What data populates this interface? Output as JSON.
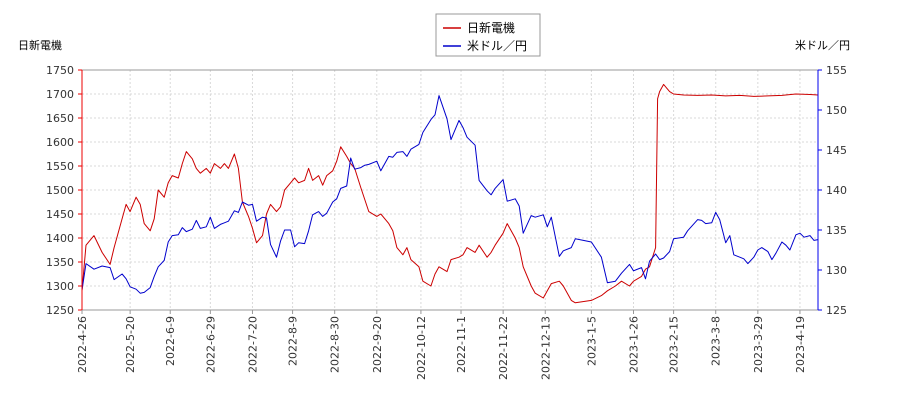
{
  "chart_data": {
    "type": "line",
    "left_axis_label": "日新電機",
    "right_axis_label": "米ドル／円",
    "x_tick_labels": [
      "2022-4-26",
      "2022-5-20",
      "2022-6-9",
      "2022-6-29",
      "2022-7-20",
      "2022-8-9",
      "2022-8-30",
      "2022-9-20",
      "2022-10-12",
      "2022-11-1",
      "2022-11-22",
      "2022-12-13",
      "2023-1-5",
      "2023-1-26",
      "2023-2-15",
      "2023-3-8",
      "2023-3-29",
      "2023-4-19"
    ],
    "x_range": [
      "2022-04-26",
      "2023-04-28"
    ],
    "y_left": {
      "min": 1250,
      "max": 1750,
      "ticks": [
        1250,
        1300,
        1350,
        1400,
        1450,
        1500,
        1550,
        1600,
        1650,
        1700,
        1750
      ]
    },
    "y_right": {
      "min": 125,
      "max": 155,
      "ticks": [
        125,
        130,
        135,
        140,
        145,
        150,
        155
      ]
    },
    "grid": true,
    "legend": {
      "position": "top-center"
    },
    "series": [
      {
        "name": "日新電機",
        "axis": "left",
        "color": "#cc0000",
        "points": [
          [
            "2022-04-26",
            1290
          ],
          [
            "2022-04-28",
            1385
          ],
          [
            "2022-05-02",
            1405
          ],
          [
            "2022-05-06",
            1370
          ],
          [
            "2022-05-10",
            1345
          ],
          [
            "2022-05-12",
            1380
          ],
          [
            "2022-05-16",
            1440
          ],
          [
            "2022-05-18",
            1470
          ],
          [
            "2022-05-20",
            1455
          ],
          [
            "2022-05-23",
            1485
          ],
          [
            "2022-05-25",
            1470
          ],
          [
            "2022-05-27",
            1430
          ],
          [
            "2022-05-30",
            1415
          ],
          [
            "2022-06-01",
            1440
          ],
          [
            "2022-06-03",
            1500
          ],
          [
            "2022-06-06",
            1485
          ],
          [
            "2022-06-08",
            1515
          ],
          [
            "2022-06-10",
            1530
          ],
          [
            "2022-06-13",
            1525
          ],
          [
            "2022-06-15",
            1555
          ],
          [
            "2022-06-17",
            1580
          ],
          [
            "2022-06-20",
            1565
          ],
          [
            "2022-06-22",
            1545
          ],
          [
            "2022-06-24",
            1535
          ],
          [
            "2022-06-27",
            1545
          ],
          [
            "2022-06-29",
            1535
          ],
          [
            "2022-07-01",
            1555
          ],
          [
            "2022-07-04",
            1545
          ],
          [
            "2022-07-06",
            1555
          ],
          [
            "2022-07-08",
            1545
          ],
          [
            "2022-07-11",
            1575
          ],
          [
            "2022-07-13",
            1545
          ],
          [
            "2022-07-15",
            1475
          ],
          [
            "2022-07-18",
            1445
          ],
          [
            "2022-07-20",
            1420
          ],
          [
            "2022-07-22",
            1390
          ],
          [
            "2022-07-25",
            1405
          ],
          [
            "2022-07-27",
            1450
          ],
          [
            "2022-07-29",
            1470
          ],
          [
            "2022-08-01",
            1455
          ],
          [
            "2022-08-03",
            1465
          ],
          [
            "2022-08-05",
            1500
          ],
          [
            "2022-08-08",
            1515
          ],
          [
            "2022-08-10",
            1525
          ],
          [
            "2022-08-12",
            1515
          ],
          [
            "2022-08-15",
            1520
          ],
          [
            "2022-08-17",
            1545
          ],
          [
            "2022-08-19",
            1520
          ],
          [
            "2022-08-22",
            1530
          ],
          [
            "2022-08-24",
            1510
          ],
          [
            "2022-08-26",
            1530
          ],
          [
            "2022-08-29",
            1540
          ],
          [
            "2022-08-31",
            1560
          ],
          [
            "2022-09-02",
            1590
          ],
          [
            "2022-09-05",
            1570
          ],
          [
            "2022-09-07",
            1555
          ],
          [
            "2022-09-09",
            1545
          ],
          [
            "2022-09-12",
            1505
          ],
          [
            "2022-09-14",
            1480
          ],
          [
            "2022-09-16",
            1455
          ],
          [
            "2022-09-20",
            1445
          ],
          [
            "2022-09-22",
            1450
          ],
          [
            "2022-09-26",
            1430
          ],
          [
            "2022-09-28",
            1415
          ],
          [
            "2022-09-30",
            1380
          ],
          [
            "2022-10-03",
            1365
          ],
          [
            "2022-10-05",
            1380
          ],
          [
            "2022-10-07",
            1355
          ],
          [
            "2022-10-11",
            1340
          ],
          [
            "2022-10-13",
            1310
          ],
          [
            "2022-10-17",
            1300
          ],
          [
            "2022-10-19",
            1325
          ],
          [
            "2022-10-21",
            1340
          ],
          [
            "2022-10-25",
            1330
          ],
          [
            "2022-10-27",
            1355
          ],
          [
            "2022-10-31",
            1360
          ],
          [
            "2022-11-02",
            1365
          ],
          [
            "2022-11-04",
            1380
          ],
          [
            "2022-11-08",
            1370
          ],
          [
            "2022-11-10",
            1385
          ],
          [
            "2022-11-14",
            1360
          ],
          [
            "2022-11-16",
            1370
          ],
          [
            "2022-11-18",
            1385
          ],
          [
            "2022-11-22",
            1410
          ],
          [
            "2022-11-24",
            1430
          ],
          [
            "2022-11-28",
            1400
          ],
          [
            "2022-11-30",
            1380
          ],
          [
            "2022-12-02",
            1340
          ],
          [
            "2022-12-06",
            1300
          ],
          [
            "2022-12-08",
            1285
          ],
          [
            "2022-12-12",
            1275
          ],
          [
            "2022-12-14",
            1290
          ],
          [
            "2022-12-16",
            1305
          ],
          [
            "2022-12-20",
            1310
          ],
          [
            "2022-12-22",
            1300
          ],
          [
            "2022-12-26",
            1270
          ],
          [
            "2022-12-28",
            1265
          ],
          [
            "2023-01-05",
            1270
          ],
          [
            "2023-01-10",
            1280
          ],
          [
            "2023-01-13",
            1290
          ],
          [
            "2023-01-17",
            1300
          ],
          [
            "2023-01-20",
            1310
          ],
          [
            "2023-01-24",
            1300
          ],
          [
            "2023-01-26",
            1310
          ],
          [
            "2023-01-30",
            1320
          ],
          [
            "2023-02-01",
            1335
          ],
          [
            "2023-02-03",
            1340
          ],
          [
            "2023-02-06",
            1380
          ],
          [
            "2023-02-07",
            1690
          ],
          [
            "2023-02-08",
            1705
          ],
          [
            "2023-02-10",
            1720
          ],
          [
            "2023-02-13",
            1705
          ],
          [
            "2023-02-15",
            1700
          ],
          [
            "2023-02-20",
            1698
          ],
          [
            "2023-02-27",
            1697
          ],
          [
            "2023-03-06",
            1698
          ],
          [
            "2023-03-13",
            1696
          ],
          [
            "2023-03-20",
            1697
          ],
          [
            "2023-03-27",
            1695
          ],
          [
            "2023-04-03",
            1696
          ],
          [
            "2023-04-10",
            1697
          ],
          [
            "2023-04-17",
            1700
          ],
          [
            "2023-04-24",
            1699
          ],
          [
            "2023-04-28",
            1698
          ]
        ]
      },
      {
        "name": "米ドル／円",
        "axis": "right",
        "color": "#0000cc",
        "points": [
          [
            "2022-04-26",
            127.5
          ],
          [
            "2022-04-28",
            130.8
          ],
          [
            "2022-05-02",
            130.1
          ],
          [
            "2022-05-06",
            130.5
          ],
          [
            "2022-05-10",
            130.3
          ],
          [
            "2022-05-12",
            128.8
          ],
          [
            "2022-05-16",
            129.5
          ],
          [
            "2022-05-18",
            128.9
          ],
          [
            "2022-05-20",
            127.9
          ],
          [
            "2022-05-23",
            127.6
          ],
          [
            "2022-05-25",
            127.1
          ],
          [
            "2022-05-27",
            127.2
          ],
          [
            "2022-05-30",
            127.8
          ],
          [
            "2022-06-01",
            129.2
          ],
          [
            "2022-06-03",
            130.4
          ],
          [
            "2022-06-06",
            131.2
          ],
          [
            "2022-06-08",
            133.5
          ],
          [
            "2022-06-10",
            134.3
          ],
          [
            "2022-06-13",
            134.4
          ],
          [
            "2022-06-15",
            135.3
          ],
          [
            "2022-06-17",
            134.8
          ],
          [
            "2022-06-20",
            135.1
          ],
          [
            "2022-06-22",
            136.2
          ],
          [
            "2022-06-24",
            135.2
          ],
          [
            "2022-06-27",
            135.4
          ],
          [
            "2022-06-29",
            136.6
          ],
          [
            "2022-07-01",
            135.2
          ],
          [
            "2022-07-04",
            135.7
          ],
          [
            "2022-07-06",
            135.9
          ],
          [
            "2022-07-08",
            136.1
          ],
          [
            "2022-07-11",
            137.4
          ],
          [
            "2022-07-13",
            137.2
          ],
          [
            "2022-07-15",
            138.5
          ],
          [
            "2022-07-18",
            138.1
          ],
          [
            "2022-07-20",
            138.2
          ],
          [
            "2022-07-22",
            136.1
          ],
          [
            "2022-07-25",
            136.6
          ],
          [
            "2022-07-27",
            136.5
          ],
          [
            "2022-07-29",
            133.2
          ],
          [
            "2022-08-01",
            131.6
          ],
          [
            "2022-08-03",
            133.6
          ],
          [
            "2022-08-05",
            135.0
          ],
          [
            "2022-08-08",
            135.0
          ],
          [
            "2022-08-10",
            132.9
          ],
          [
            "2022-08-12",
            133.4
          ],
          [
            "2022-08-15",
            133.3
          ],
          [
            "2022-08-17",
            134.9
          ],
          [
            "2022-08-19",
            136.9
          ],
          [
            "2022-08-22",
            137.3
          ],
          [
            "2022-08-24",
            136.7
          ],
          [
            "2022-08-26",
            137.1
          ],
          [
            "2022-08-29",
            138.5
          ],
          [
            "2022-08-31",
            138.9
          ],
          [
            "2022-09-02",
            140.2
          ],
          [
            "2022-09-05",
            140.5
          ],
          [
            "2022-09-07",
            144.0
          ],
          [
            "2022-09-09",
            142.6
          ],
          [
            "2022-09-12",
            142.8
          ],
          [
            "2022-09-14",
            143.1
          ],
          [
            "2022-09-16",
            143.2
          ],
          [
            "2022-09-20",
            143.6
          ],
          [
            "2022-09-22",
            142.4
          ],
          [
            "2022-09-26",
            144.2
          ],
          [
            "2022-09-28",
            144.1
          ],
          [
            "2022-09-30",
            144.7
          ],
          [
            "2022-10-03",
            144.8
          ],
          [
            "2022-10-05",
            144.2
          ],
          [
            "2022-10-07",
            145.1
          ],
          [
            "2022-10-11",
            145.7
          ],
          [
            "2022-10-13",
            147.2
          ],
          [
            "2022-10-17",
            148.8
          ],
          [
            "2022-10-19",
            149.4
          ],
          [
            "2022-10-21",
            151.8
          ],
          [
            "2022-10-25",
            148.9
          ],
          [
            "2022-10-27",
            146.3
          ],
          [
            "2022-10-31",
            148.7
          ],
          [
            "2022-11-02",
            147.8
          ],
          [
            "2022-11-04",
            146.6
          ],
          [
            "2022-11-08",
            145.6
          ],
          [
            "2022-11-10",
            141.2
          ],
          [
            "2022-11-14",
            139.9
          ],
          [
            "2022-11-16",
            139.4
          ],
          [
            "2022-11-18",
            140.2
          ],
          [
            "2022-11-22",
            141.3
          ],
          [
            "2022-11-24",
            138.6
          ],
          [
            "2022-11-28",
            138.9
          ],
          [
            "2022-11-30",
            138.0
          ],
          [
            "2022-12-02",
            134.6
          ],
          [
            "2022-12-06",
            136.8
          ],
          [
            "2022-12-08",
            136.6
          ],
          [
            "2022-12-12",
            136.9
          ],
          [
            "2022-12-14",
            135.4
          ],
          [
            "2022-12-16",
            136.6
          ],
          [
            "2022-12-20",
            131.7
          ],
          [
            "2022-12-22",
            132.4
          ],
          [
            "2022-12-26",
            132.8
          ],
          [
            "2022-12-28",
            133.9
          ],
          [
            "2023-01-05",
            133.5
          ],
          [
            "2023-01-10",
            131.6
          ],
          [
            "2023-01-13",
            128.4
          ],
          [
            "2023-01-17",
            128.6
          ],
          [
            "2023-01-20",
            129.6
          ],
          [
            "2023-01-24",
            130.7
          ],
          [
            "2023-01-26",
            129.9
          ],
          [
            "2023-01-30",
            130.3
          ],
          [
            "2023-02-01",
            128.9
          ],
          [
            "2023-02-03",
            131.1
          ],
          [
            "2023-02-06",
            132.0
          ],
          [
            "2023-02-08",
            131.3
          ],
          [
            "2023-02-10",
            131.5
          ],
          [
            "2023-02-13",
            132.3
          ],
          [
            "2023-02-15",
            133.9
          ],
          [
            "2023-02-20",
            134.1
          ],
          [
            "2023-02-22",
            134.9
          ],
          [
            "2023-02-27",
            136.3
          ],
          [
            "2023-03-01",
            136.2
          ],
          [
            "2023-03-03",
            135.8
          ],
          [
            "2023-03-06",
            135.9
          ],
          [
            "2023-03-08",
            137.2
          ],
          [
            "2023-03-10",
            136.3
          ],
          [
            "2023-03-13",
            133.4
          ],
          [
            "2023-03-15",
            134.3
          ],
          [
            "2023-03-17",
            131.9
          ],
          [
            "2023-03-20",
            131.6
          ],
          [
            "2023-03-22",
            131.4
          ],
          [
            "2023-03-24",
            130.8
          ],
          [
            "2023-03-27",
            131.6
          ],
          [
            "2023-03-29",
            132.5
          ],
          [
            "2023-03-31",
            132.8
          ],
          [
            "2023-04-03",
            132.3
          ],
          [
            "2023-04-05",
            131.3
          ],
          [
            "2023-04-07",
            132.1
          ],
          [
            "2023-04-10",
            133.5
          ],
          [
            "2023-04-12",
            133.1
          ],
          [
            "2023-04-14",
            132.5
          ],
          [
            "2023-04-17",
            134.4
          ],
          [
            "2023-04-19",
            134.6
          ],
          [
            "2023-04-21",
            134.1
          ],
          [
            "2023-04-24",
            134.3
          ],
          [
            "2023-04-26",
            133.7
          ],
          [
            "2023-04-28",
            133.8
          ]
        ]
      }
    ]
  }
}
